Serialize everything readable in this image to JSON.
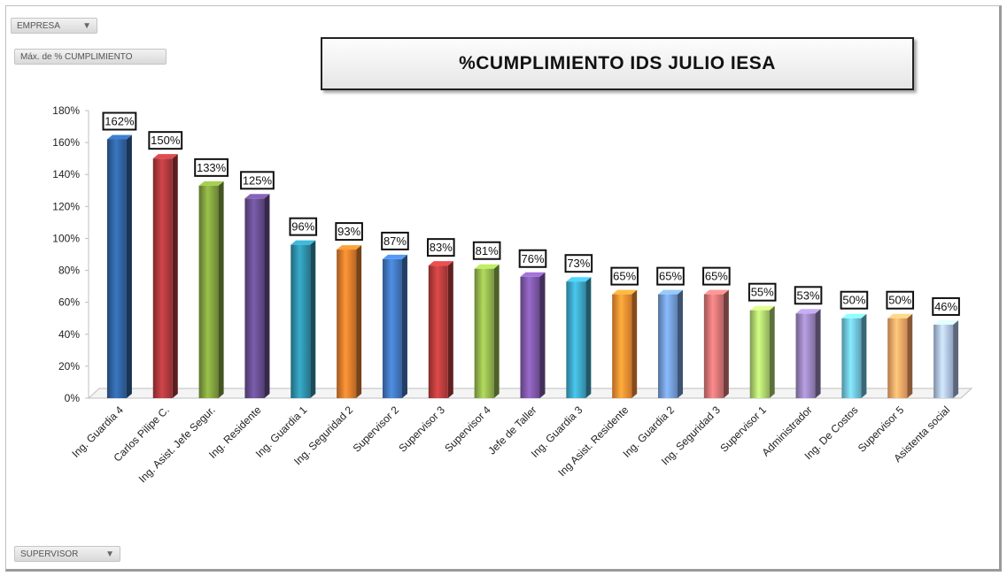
{
  "filters": {
    "empresa_label": "EMPRESA",
    "measure_label": "Máx. de % CUMPLIMIENTO",
    "supervisor_label": "SUPERVISOR",
    "filter_icon": "filter-icon"
  },
  "chart_data": {
    "type": "bar",
    "title": "%CUMPLIMIENTO IDS  JULIO  IESA",
    "xlabel": "",
    "ylabel": "",
    "ylim": [
      0,
      180
    ],
    "yticks": [
      0,
      20,
      40,
      60,
      80,
      100,
      120,
      140,
      160,
      180
    ],
    "ytick_labels": [
      "0%",
      "20%",
      "40%",
      "60%",
      "80%",
      "100%",
      "120%",
      "140%",
      "160%",
      "180%"
    ],
    "grid": false,
    "legend": "none",
    "categories": [
      "Ing. Guardia 4",
      "Carlos Pilipe C.",
      "Ing. Asist. Jefe Segur.",
      "Ing. Residente",
      "Ing. Guardia 1",
      "Ing. Seguridad 2",
      "Supervisor 2",
      "Supervisor 3",
      "Supervisor 4",
      "Jefe de Taller",
      "Ing. Guardia 3",
      "Ing Asist. Residente",
      "Ing. Guardia 2",
      "Ing. Seguridad 3",
      "Supervisor 1",
      "Administrador",
      "Ing. De Costos",
      "Supervisor 5",
      "Asistenta social"
    ],
    "values": [
      162,
      150,
      133,
      125,
      96,
      93,
      87,
      83,
      81,
      76,
      73,
      65,
      65,
      65,
      55,
      53,
      50,
      50,
      46
    ],
    "data_labels": [
      "162%",
      "150%",
      "133%",
      "125%",
      "96%",
      "93%",
      "87%",
      "83%",
      "81%",
      "76%",
      "73%",
      "65%",
      "65%",
      "65%",
      "55%",
      "53%",
      "50%",
      "50%",
      "46%"
    ],
    "colors": [
      "#2e5e9a",
      "#a8373a",
      "#7c9a3c",
      "#634a8a",
      "#2d8aa3",
      "#d8782a",
      "#3f72b8",
      "#b23a3a",
      "#8eb04a",
      "#7a55a3",
      "#3aa0bf",
      "#f08a30",
      "#6f96d0",
      "#d07070",
      "#a8cc6a",
      "#9480b6",
      "#6cbcd6",
      "#f6a164",
      "#a9bce0"
    ]
  }
}
